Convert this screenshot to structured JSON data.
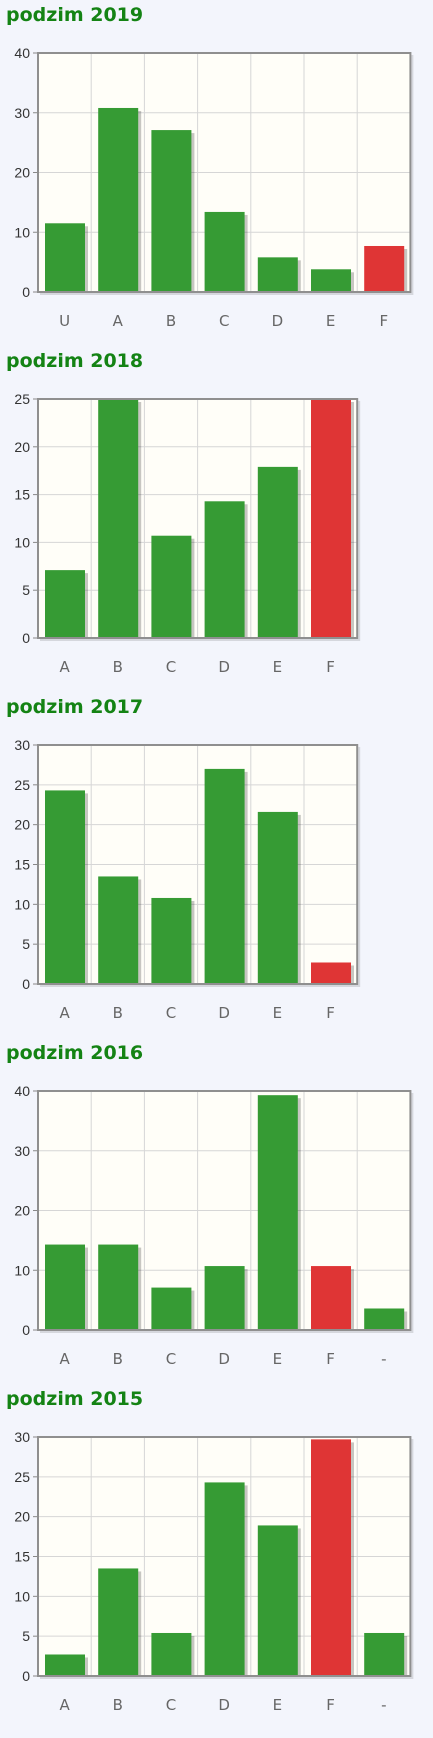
{
  "colors": {
    "pass": "#369b34",
    "fail": "#df3535",
    "title": "#148314"
  },
  "chart_data": [
    {
      "type": "bar",
      "title": "podzim 2019",
      "categories": [
        "U",
        "A",
        "B",
        "C",
        "D",
        "E",
        "F"
      ],
      "values": [
        11.5,
        30.8,
        27.1,
        13.4,
        5.8,
        3.8,
        7.7
      ],
      "fail_category": "F",
      "yticks": [
        "0",
        "10",
        "20",
        "30",
        "40"
      ],
      "ylim": [
        0,
        40
      ],
      "grid": true
    },
    {
      "type": "bar",
      "title": "podzim 2018",
      "categories": [
        "A",
        "B",
        "C",
        "D",
        "E",
        "F"
      ],
      "values": [
        7.1,
        25,
        10.7,
        14.3,
        17.9,
        25
      ],
      "fail_category": "F",
      "yticks": [
        "0",
        "5",
        "10",
        "15",
        "20",
        "25"
      ],
      "ylim": [
        0,
        25
      ],
      "grid": true
    },
    {
      "type": "bar",
      "title": "podzim 2017",
      "categories": [
        "A",
        "B",
        "C",
        "D",
        "E",
        "F"
      ],
      "values": [
        24.3,
        13.5,
        10.8,
        27.0,
        21.6,
        2.7
      ],
      "fail_category": "F",
      "yticks": [
        "0",
        "5",
        "10",
        "15",
        "20",
        "25",
        "30"
      ],
      "ylim": [
        0,
        30
      ],
      "grid": true
    },
    {
      "type": "bar",
      "title": "podzim 2016",
      "categories": [
        "A",
        "B",
        "C",
        "D",
        "E",
        "F",
        "-"
      ],
      "values": [
        14.3,
        14.3,
        7.1,
        10.7,
        39.3,
        10.7,
        3.6
      ],
      "fail_category": "F",
      "yticks": [
        "0",
        "10",
        "20",
        "30",
        "40"
      ],
      "ylim": [
        0,
        40
      ],
      "grid": true
    },
    {
      "type": "bar",
      "title": "podzim 2015",
      "categories": [
        "A",
        "B",
        "C",
        "D",
        "E",
        "F",
        "-"
      ],
      "values": [
        2.7,
        13.5,
        5.4,
        24.3,
        18.9,
        29.7,
        5.4
      ],
      "fail_category": "F",
      "yticks": [
        "0",
        "5",
        "10",
        "15",
        "20",
        "25",
        "30"
      ],
      "ylim": [
        0,
        30
      ],
      "grid": true
    }
  ]
}
